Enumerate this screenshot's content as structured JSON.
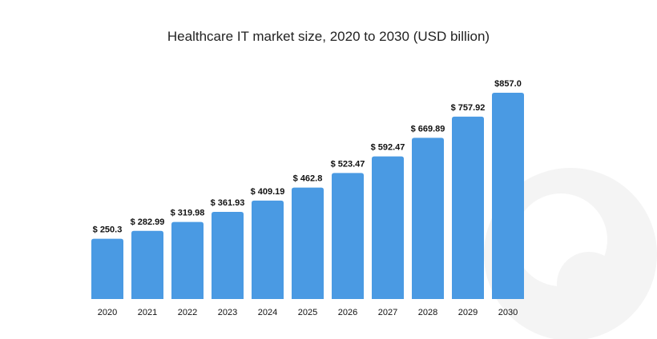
{
  "chart_data": {
    "type": "bar",
    "title": "Healthcare IT market size, 2020 to 2030 (USD billion)",
    "categories": [
      "2020",
      "2021",
      "2022",
      "2023",
      "2024",
      "2025",
      "2026",
      "2027",
      "2028",
      "2029",
      "2030"
    ],
    "values": [
      250.3,
      282.99,
      319.98,
      361.93,
      409.19,
      462.8,
      523.47,
      592.47,
      669.89,
      757.92,
      857.0
    ],
    "data_labels": [
      "$ 250.3",
      "$ 282.99",
      "$ 319.98",
      "$ 361.93",
      "$ 409.19",
      "$ 462.8",
      "$ 523.47",
      "$ 592.47",
      "$ 669.89",
      "$ 757.92",
      "$857.0"
    ],
    "xlabel": "",
    "ylabel": "",
    "ylim": [
      0,
      900
    ],
    "grid": false,
    "legend": "none",
    "colors": {
      "bar": "#4a9ae3",
      "watermark": "#f3f3f3"
    }
  }
}
